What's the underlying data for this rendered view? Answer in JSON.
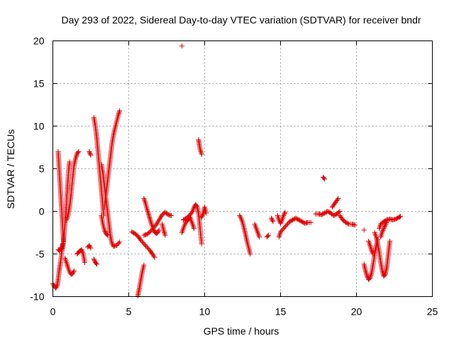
{
  "chart_data": {
    "type": "scatter",
    "title": "Day 293 of 2022, Sidereal Day-to-day VTEC variation (SDTVAR) for receiver bndr",
    "xlabel": "GPS time / hours",
    "ylabel": "SDTVAR / TECUs",
    "xlim": [
      0,
      25
    ],
    "ylim": [
      -10,
      20
    ],
    "xticks": [
      0,
      5,
      10,
      15,
      20,
      25
    ],
    "yticks": [
      -10,
      -5,
      0,
      5,
      10,
      15,
      20
    ],
    "xtick_labels": [
      "0",
      "5",
      "10",
      "15",
      "20",
      "25"
    ],
    "ytick_labels": [
      "-10",
      "-5",
      "0",
      "5",
      "10",
      "15",
      "20"
    ],
    "grid": true,
    "marker": "+",
    "color": "#e00000",
    "segments": [
      [
        [
          0.0,
          -8.5
        ],
        [
          0.1,
          -8.8
        ],
        [
          0.2,
          -9.0
        ],
        [
          0.3,
          -8.6
        ],
        [
          0.35,
          -8.0
        ],
        [
          0.4,
          -7.2
        ],
        [
          0.45,
          -6.6
        ],
        [
          0.5,
          -6.0
        ],
        [
          0.55,
          -5.3
        ],
        [
          0.6,
          -4.6
        ],
        [
          0.65,
          -4.2
        ],
        [
          0.7,
          -3.6
        ],
        [
          0.75,
          -2.5
        ],
        [
          0.8,
          -1.5
        ],
        [
          0.85,
          -0.3
        ],
        [
          0.9,
          1.0
        ],
        [
          0.95,
          2.5
        ],
        [
          1.0,
          3.8
        ],
        [
          1.05,
          5.0
        ],
        [
          1.1,
          5.8
        ]
      ],
      [
        [
          0.35,
          -4.5
        ],
        [
          0.45,
          -4.6
        ],
        [
          0.55,
          -4.4
        ],
        [
          0.65,
          -3.8
        ]
      ],
      [
        [
          0.35,
          7.0
        ],
        [
          0.4,
          5.5
        ],
        [
          0.45,
          4.0
        ],
        [
          0.5,
          2.5
        ],
        [
          0.55,
          1.0
        ],
        [
          0.6,
          -0.5
        ],
        [
          0.65,
          -2.0
        ],
        [
          0.7,
          -3.5
        ]
      ],
      [
        [
          0.8,
          -5.5
        ],
        [
          0.9,
          -6.0
        ],
        [
          1.0,
          -6.6
        ],
        [
          1.1,
          -7.1
        ],
        [
          1.2,
          -7.4
        ],
        [
          1.3,
          -7.3
        ],
        [
          1.4,
          -7.0
        ]
      ],
      [
        [
          0.9,
          -1.0
        ],
        [
          1.0,
          -0.5
        ],
        [
          1.1,
          0.5
        ],
        [
          1.2,
          2.0
        ],
        [
          1.3,
          3.8
        ],
        [
          1.4,
          5.4
        ],
        [
          1.5,
          6.2
        ],
        [
          1.6,
          6.8
        ],
        [
          1.7,
          7.0
        ]
      ],
      [
        [
          1.6,
          -5.0
        ],
        [
          1.7,
          -4.8
        ],
        [
          1.8,
          -4.6
        ],
        [
          1.9,
          -4.5
        ],
        [
          2.0,
          -5.0
        ],
        [
          2.1,
          -6.0
        ]
      ],
      [
        [
          2.3,
          -4.2
        ],
        [
          2.4,
          -4.0
        ],
        [
          2.5,
          -4.3
        ]
      ],
      [
        [
          2.4,
          7.0
        ],
        [
          2.5,
          6.6
        ]
      ],
      [
        [
          2.7,
          11.0
        ],
        [
          2.75,
          10.5
        ],
        [
          2.8,
          10.0
        ],
        [
          2.85,
          9.3
        ],
        [
          2.9,
          8.5
        ],
        [
          2.95,
          7.5
        ],
        [
          3.0,
          6.5
        ],
        [
          3.05,
          5.5
        ],
        [
          3.1,
          4.5
        ],
        [
          3.15,
          3.5
        ],
        [
          3.2,
          2.5
        ],
        [
          3.25,
          1.5
        ],
        [
          3.3,
          0.5
        ],
        [
          3.35,
          -0.5
        ]
      ],
      [
        [
          2.7,
          -5.6
        ],
        [
          2.8,
          -6.0
        ],
        [
          2.9,
          -6.2
        ]
      ],
      [
        [
          3.2,
          -0.5
        ],
        [
          3.3,
          -1.5
        ],
        [
          3.4,
          -2.2
        ],
        [
          3.5,
          -2.6
        ],
        [
          3.6,
          -2.8
        ]
      ],
      [
        [
          3.2,
          5.5
        ],
        [
          3.3,
          4.5
        ],
        [
          3.4,
          3.0
        ],
        [
          3.5,
          1.5
        ],
        [
          3.6,
          0.0
        ],
        [
          3.7,
          -1.5
        ],
        [
          3.8,
          -3.0
        ],
        [
          3.9,
          -3.8
        ],
        [
          4.0,
          -4.1
        ],
        [
          4.2,
          -4.0
        ],
        [
          4.4,
          -3.6
        ]
      ],
      [
        [
          3.4,
          0.5
        ],
        [
          3.5,
          2.0
        ],
        [
          3.6,
          3.5
        ],
        [
          3.7,
          5.0
        ],
        [
          3.8,
          6.5
        ],
        [
          3.9,
          8.0
        ],
        [
          4.0,
          9.0
        ],
        [
          4.1,
          9.8
        ],
        [
          4.2,
          10.5
        ],
        [
          4.3,
          11.2
        ],
        [
          4.4,
          11.8
        ]
      ],
      [
        [
          5.2,
          -2.4
        ],
        [
          5.4,
          -2.6
        ],
        [
          5.6,
          -2.9
        ],
        [
          5.8,
          -3.4
        ],
        [
          6.0,
          -3.8
        ],
        [
          6.2,
          -4.2
        ],
        [
          6.4,
          -4.6
        ],
        [
          6.6,
          -5.1
        ],
        [
          6.7,
          -5.4
        ]
      ],
      [
        [
          5.6,
          -9.9
        ],
        [
          5.7,
          -9.0
        ],
        [
          5.8,
          -8.0
        ],
        [
          5.9,
          -7.0
        ],
        [
          6.0,
          -6.3
        ]
      ],
      [
        [
          6.0,
          1.5
        ],
        [
          6.1,
          1.0
        ],
        [
          6.2,
          0.3
        ],
        [
          6.3,
          -0.3
        ],
        [
          6.4,
          -0.9
        ],
        [
          6.5,
          -1.5
        ],
        [
          6.6,
          -2.0
        ],
        [
          6.7,
          -2.4
        ],
        [
          6.8,
          -2.6
        ],
        [
          6.9,
          -2.5
        ],
        [
          7.0,
          -2.2
        ]
      ],
      [
        [
          6.0,
          -2.8
        ],
        [
          6.2,
          -2.7
        ],
        [
          6.4,
          -2.4
        ],
        [
          6.6,
          -2.0
        ],
        [
          6.8,
          -1.6
        ],
        [
          7.0,
          -1.0
        ],
        [
          7.2,
          -0.4
        ],
        [
          7.4,
          -0.1
        ],
        [
          7.6,
          -0.4
        ],
        [
          7.8,
          -0.5
        ]
      ],
      [
        [
          7.2,
          -1.5
        ],
        [
          7.3,
          -2.2
        ],
        [
          7.4,
          -2.8
        ]
      ],
      [
        [
          8.5,
          19.4
        ]
      ],
      [
        [
          8.5,
          -2.5
        ],
        [
          8.6,
          -2.0
        ],
        [
          8.7,
          -1.5
        ],
        [
          8.8,
          -1.2
        ],
        [
          8.9,
          -1.0
        ],
        [
          9.0,
          -0.8
        ]
      ],
      [
        [
          8.6,
          -1.0
        ],
        [
          8.8,
          -0.8
        ],
        [
          9.0,
          -0.5
        ],
        [
          9.2,
          0.0
        ],
        [
          9.3,
          0.5
        ],
        [
          9.4,
          0.8
        ],
        [
          9.5,
          0.6
        ],
        [
          9.6,
          -0.3
        ],
        [
          9.7,
          -2.0
        ],
        [
          9.8,
          -3.8
        ]
      ],
      [
        [
          9.0,
          -0.5
        ],
        [
          9.2,
          -1.5
        ],
        [
          9.3,
          -2.0
        ]
      ],
      [
        [
          9.6,
          8.4
        ],
        [
          9.65,
          7.8
        ],
        [
          9.7,
          7.3
        ],
        [
          9.75,
          7.0
        ],
        [
          9.8,
          6.7
        ]
      ],
      [
        [
          9.8,
          -0.7
        ],
        [
          9.9,
          -0.3
        ],
        [
          10.0,
          0.5
        ],
        [
          10.1,
          -0.2
        ]
      ],
      [
        [
          12.3,
          -0.5
        ],
        [
          12.4,
          -0.8
        ],
        [
          12.5,
          -1.3
        ],
        [
          12.6,
          -2.0
        ],
        [
          12.7,
          -2.8
        ],
        [
          12.8,
          -3.6
        ],
        [
          12.9,
          -4.3
        ],
        [
          13.0,
          -5.0
        ]
      ],
      [
        [
          13.3,
          -1.5
        ],
        [
          13.4,
          -2.0
        ],
        [
          13.5,
          -2.5
        ],
        [
          13.6,
          -3.0
        ]
      ],
      [
        [
          14.1,
          -3.0
        ],
        [
          14.2,
          -2.8
        ]
      ],
      [
        [
          14.4,
          -0.8
        ],
        [
          14.5,
          -1.2
        ]
      ],
      [
        [
          14.8,
          -0.5
        ],
        [
          14.9,
          -1.0
        ],
        [
          15.0,
          -1.4
        ],
        [
          15.1,
          -1.0
        ],
        [
          15.2,
          -0.5
        ],
        [
          15.3,
          -0.1
        ]
      ],
      [
        [
          14.9,
          -3.0
        ],
        [
          15.0,
          -2.4
        ],
        [
          15.2,
          -2.0
        ],
        [
          15.4,
          -1.6
        ],
        [
          15.6,
          -1.2
        ],
        [
          15.8,
          -1.0
        ],
        [
          16.0,
          -0.8
        ],
        [
          16.2,
          -1.0
        ],
        [
          16.4,
          -1.2
        ],
        [
          16.6,
          -1.4
        ],
        [
          16.8,
          -1.3
        ],
        [
          17.0,
          -1.3
        ]
      ],
      [
        [
          17.3,
          -0.3
        ],
        [
          17.5,
          -0.3
        ],
        [
          17.7,
          -0.4
        ],
        [
          17.9,
          -0.2
        ],
        [
          18.1,
          0.0
        ],
        [
          18.3,
          -0.2
        ],
        [
          18.5,
          -0.5
        ],
        [
          18.7,
          -0.3
        ],
        [
          18.9,
          0.0
        ]
      ],
      [
        [
          17.8,
          4.0
        ],
        [
          17.9,
          3.8
        ]
      ],
      [
        [
          18.4,
          0.5
        ],
        [
          18.6,
          1.0
        ],
        [
          18.8,
          1.5
        ]
      ],
      [
        [
          18.9,
          -0.5
        ],
        [
          19.1,
          -1.0
        ],
        [
          19.3,
          -1.3
        ],
        [
          19.5,
          -1.5
        ],
        [
          19.7,
          -1.5
        ],
        [
          19.9,
          -1.6
        ]
      ],
      [
        [
          20.5,
          -2.2
        ]
      ],
      [
        [
          20.5,
          -6.2
        ],
        [
          20.6,
          -7.0
        ],
        [
          20.7,
          -7.6
        ],
        [
          20.8,
          -8.0
        ],
        [
          20.9,
          -7.8
        ],
        [
          21.0,
          -7.2
        ],
        [
          21.1,
          -6.2
        ],
        [
          21.2,
          -5.0
        ],
        [
          21.3,
          -4.0
        ],
        [
          21.4,
          -3.3
        ]
      ],
      [
        [
          20.8,
          -3.5
        ],
        [
          20.9,
          -4.0
        ],
        [
          21.0,
          -4.6
        ],
        [
          21.1,
          -5.0
        ]
      ],
      [
        [
          21.2,
          -2.5
        ],
        [
          21.3,
          -3.0
        ],
        [
          21.4,
          -3.8
        ],
        [
          21.5,
          -4.8
        ],
        [
          21.6,
          -6.0
        ],
        [
          21.7,
          -7.0
        ],
        [
          21.8,
          -7.6
        ],
        [
          21.9,
          -7.4
        ],
        [
          22.0,
          -6.5
        ],
        [
          22.1,
          -5.0
        ],
        [
          22.2,
          -3.5
        ]
      ],
      [
        [
          21.5,
          -2.0
        ],
        [
          21.6,
          -1.5
        ],
        [
          21.8,
          -1.2
        ],
        [
          22.0,
          -1.0
        ],
        [
          22.2,
          -0.9
        ],
        [
          22.4,
          -1.0
        ],
        [
          22.6,
          -0.9
        ],
        [
          22.8,
          -0.7
        ],
        [
          22.9,
          -0.6
        ]
      ],
      [
        [
          21.6,
          -3.0
        ],
        [
          21.7,
          -2.4
        ],
        [
          21.8,
          -2.0
        ],
        [
          21.9,
          -1.6
        ],
        [
          22.0,
          -1.2
        ]
      ]
    ]
  }
}
